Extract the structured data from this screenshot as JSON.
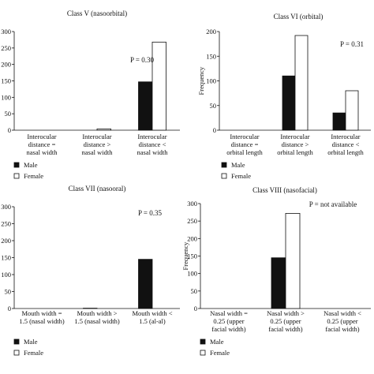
{
  "chart_data": [
    {
      "type": "bar",
      "title": "Class V (nasoorbital)",
      "ylabel": "",
      "ylim": [
        0,
        300
      ],
      "yticks": [
        0,
        50,
        100,
        150,
        200,
        250,
        300
      ],
      "annotation": "P = 0.30",
      "categories": [
        [
          "Interocular",
          "distance =",
          "nasal width"
        ],
        [
          "Interocular",
          "distance >",
          "nasal width"
        ],
        [
          "Interocular",
          "distance <",
          "nasal width"
        ]
      ],
      "series": [
        {
          "name": "Male",
          "color": "#111111",
          "values": [
            0,
            0,
            147
          ]
        },
        {
          "name": "Female",
          "color": "#ffffff",
          "values": [
            0,
            4,
            268
          ]
        }
      ]
    },
    {
      "type": "bar",
      "title": "Class VI (orbital)",
      "ylabel": "Frequency",
      "ylim": [
        0,
        200
      ],
      "yticks": [
        0,
        50,
        100,
        150,
        200
      ],
      "annotation": "P = 0.31",
      "categories": [
        [
          "Interocular",
          "distance =",
          "orbital length"
        ],
        [
          "Interocular",
          "distance >",
          "orbital length"
        ],
        [
          "Interocular",
          "distance <",
          "orbital length"
        ]
      ],
      "series": [
        {
          "name": "Male",
          "color": "#111111",
          "values": [
            0,
            110,
            35
          ]
        },
        {
          "name": "Female",
          "color": "#ffffff",
          "values": [
            0,
            192,
            80
          ]
        }
      ]
    },
    {
      "type": "bar",
      "title": "Class VII (nasooral)",
      "ylabel": "",
      "ylim": [
        0,
        300
      ],
      "yticks": [
        0,
        50,
        100,
        150,
        200,
        250,
        300
      ],
      "annotation": "P = 0.35",
      "categories": [
        [
          "Mouth width =",
          "1.5 (nasal width)"
        ],
        [
          "Mouth width >",
          "1.5 (nasal width)"
        ],
        [
          "Mouth width <",
          "1.5 (al-al)"
        ]
      ],
      "series": [
        {
          "name": "Male",
          "color": "#111111",
          "values": [
            0,
            1,
            145
          ]
        },
        {
          "name": "Female",
          "color": "#ffffff",
          "values": [
            0,
            0,
            0
          ]
        }
      ]
    },
    {
      "type": "bar",
      "title": "Class VIII (nasofacial)",
      "ylabel": "Frequency",
      "ylim": [
        0,
        300
      ],
      "yticks": [
        0,
        50,
        100,
        150,
        200,
        250,
        300
      ],
      "annotation": "P = not available",
      "categories": [
        [
          "Nasal width =",
          "0.25 (upper",
          "facial width)"
        ],
        [
          "Nasal width >",
          "0.25 (upper",
          "facial width)"
        ],
        [
          "Nasal width <",
          "0.25 (upper",
          "facial width)"
        ]
      ],
      "series": [
        {
          "name": "Male",
          "color": "#111111",
          "values": [
            0,
            145,
            0
          ]
        },
        {
          "name": "Female",
          "color": "#ffffff",
          "values": [
            0,
            272,
            0
          ]
        }
      ]
    }
  ]
}
